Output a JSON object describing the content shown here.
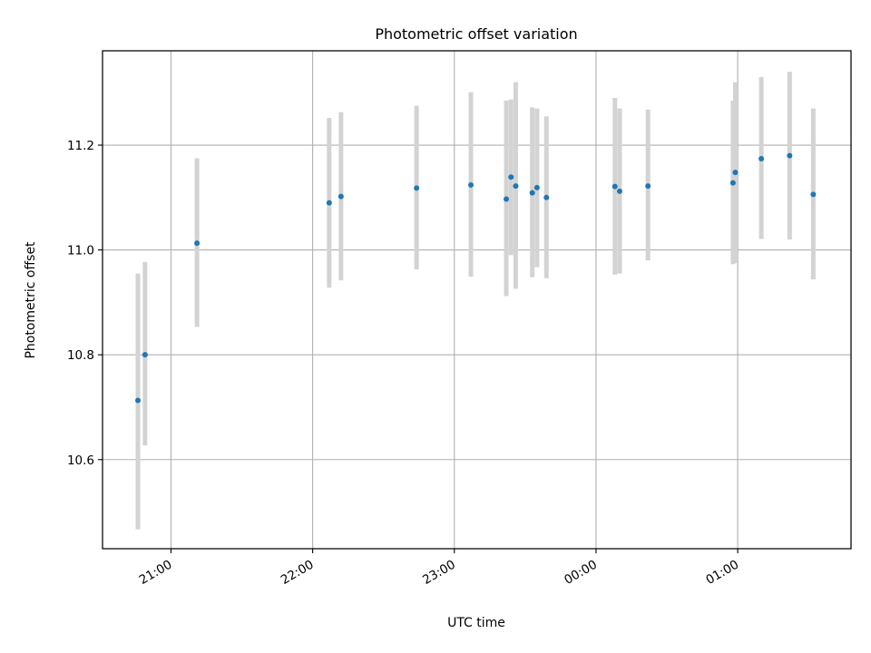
{
  "chart_data": {
    "type": "scatter",
    "title": "Photometric offset variation",
    "xlabel": "UTC time",
    "ylabel": "Photometric offset",
    "x_tick_labels": [
      "21:00",
      "22:00",
      "23:00",
      "00:00",
      "01:00"
    ],
    "y_tick_labels": [
      "10.6",
      "10.8",
      "11.0",
      "11.2"
    ],
    "x_ticks": [
      "21:00",
      "22:00",
      "23:00",
      "00:00",
      "01:00"
    ],
    "y_ticks": [
      10.6,
      10.8,
      11.0,
      11.2
    ],
    "xlim": [
      "20:31",
      "01:48"
    ],
    "ylim": [
      10.43,
      11.38
    ],
    "grid": true,
    "marker_color": "#1f77b4",
    "errorbar_color": "#d3d3d3",
    "points": [
      {
        "x": "20:46",
        "y": 10.713,
        "yerr_low": 10.467,
        "yerr_high": 10.955
      },
      {
        "x": "20:49",
        "y": 10.8,
        "yerr_low": 10.627,
        "yerr_high": 10.977
      },
      {
        "x": "21:11",
        "y": 11.013,
        "yerr_low": 10.853,
        "yerr_high": 11.175
      },
      {
        "x": "22:07",
        "y": 11.09,
        "yerr_low": 10.928,
        "yerr_high": 11.252
      },
      {
        "x": "22:12",
        "y": 11.102,
        "yerr_low": 10.942,
        "yerr_high": 11.263
      },
      {
        "x": "22:44",
        "y": 11.118,
        "yerr_low": 10.963,
        "yerr_high": 11.275
      },
      {
        "x": "23:07",
        "y": 11.124,
        "yerr_low": 10.949,
        "yerr_high": 11.301
      },
      {
        "x": "23:22",
        "y": 11.097,
        "yerr_low": 10.912,
        "yerr_high": 11.285
      },
      {
        "x": "23:24",
        "y": 11.139,
        "yerr_low": 10.99,
        "yerr_high": 11.287
      },
      {
        "x": "23:26",
        "y": 11.122,
        "yerr_low": 10.926,
        "yerr_high": 11.32
      },
      {
        "x": "23:33",
        "y": 11.109,
        "yerr_low": 10.948,
        "yerr_high": 11.272
      },
      {
        "x": "23:35",
        "y": 11.119,
        "yerr_low": 10.967,
        "yerr_high": 11.27
      },
      {
        "x": "23:39",
        "y": 11.1,
        "yerr_low": 10.946,
        "yerr_high": 11.255
      },
      {
        "x": "00:08",
        "y": 11.121,
        "yerr_low": 10.953,
        "yerr_high": 11.29
      },
      {
        "x": "00:10",
        "y": 11.112,
        "yerr_low": 10.955,
        "yerr_high": 11.27
      },
      {
        "x": "00:22",
        "y": 11.122,
        "yerr_low": 10.98,
        "yerr_high": 11.268
      },
      {
        "x": "00:58",
        "y": 11.128,
        "yerr_low": 10.973,
        "yerr_high": 11.285
      },
      {
        "x": "00:59",
        "y": 11.148,
        "yerr_low": 10.975,
        "yerr_high": 11.32
      },
      {
        "x": "01:10",
        "y": 11.174,
        "yerr_low": 11.021,
        "yerr_high": 11.33
      },
      {
        "x": "01:22",
        "y": 11.18,
        "yerr_low": 11.02,
        "yerr_high": 11.34
      },
      {
        "x": "01:32",
        "y": 11.106,
        "yerr_low": 10.944,
        "yerr_high": 11.27
      }
    ]
  }
}
